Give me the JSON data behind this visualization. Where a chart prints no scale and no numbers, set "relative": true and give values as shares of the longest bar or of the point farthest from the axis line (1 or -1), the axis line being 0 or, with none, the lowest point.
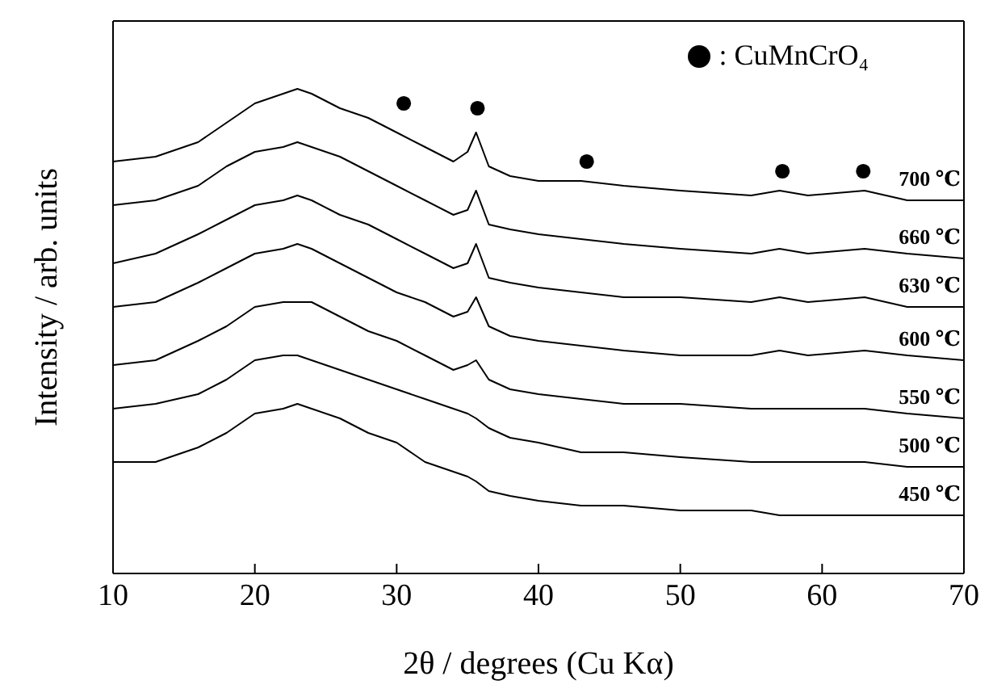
{
  "chart_data": {
    "type": "line",
    "relative": true,
    "xlabel": "2θ  / degrees  (Cu Kα)",
    "ylabel": "Intensity / arb. units",
    "x": [
      10,
      13,
      16,
      18,
      20,
      22,
      23,
      24,
      26,
      28,
      30,
      32,
      34,
      35,
      35.6,
      36.5,
      38,
      40,
      43,
      46,
      50,
      55,
      57,
      59,
      63,
      66,
      70
    ],
    "xlim": [
      10,
      70
    ],
    "xticks": [
      10,
      20,
      30,
      40,
      50,
      60,
      70
    ],
    "grid": false,
    "legend": "top right",
    "marker": "none",
    "line_style": "solid",
    "series": [
      {
        "name": "700 ℃",
        "color": "#000000",
        "values": [
          0.85,
          0.86,
          0.89,
          0.93,
          0.97,
          0.99,
          1.0,
          0.99,
          0.96,
          0.94,
          0.91,
          0.88,
          0.85,
          0.87,
          0.91,
          0.84,
          0.82,
          0.81,
          0.81,
          0.8,
          0.79,
          0.78,
          0.79,
          0.78,
          0.79,
          0.77,
          0.77
        ]
      },
      {
        "name": "660 ℃",
        "color": "#000000",
        "values": [
          0.76,
          0.77,
          0.8,
          0.84,
          0.87,
          0.88,
          0.89,
          0.88,
          0.86,
          0.83,
          0.8,
          0.77,
          0.74,
          0.75,
          0.79,
          0.72,
          0.71,
          0.7,
          0.69,
          0.68,
          0.67,
          0.66,
          0.67,
          0.66,
          0.67,
          0.66,
          0.65
        ]
      },
      {
        "name": "630 ℃",
        "color": "#000000",
        "values": [
          0.64,
          0.66,
          0.7,
          0.73,
          0.76,
          0.77,
          0.78,
          0.77,
          0.74,
          0.72,
          0.69,
          0.66,
          0.63,
          0.64,
          0.68,
          0.61,
          0.6,
          0.59,
          0.58,
          0.57,
          0.57,
          0.56,
          0.57,
          0.56,
          0.57,
          0.55,
          0.55
        ]
      },
      {
        "name": "600 ℃",
        "color": "#000000",
        "values": [
          0.55,
          0.56,
          0.6,
          0.63,
          0.66,
          0.67,
          0.68,
          0.67,
          0.64,
          0.61,
          0.58,
          0.56,
          0.53,
          0.54,
          0.57,
          0.51,
          0.49,
          0.48,
          0.47,
          0.46,
          0.45,
          0.45,
          0.46,
          0.45,
          0.46,
          0.45,
          0.44
        ]
      },
      {
        "name": "550 ℃",
        "color": "#000000",
        "values": [
          0.43,
          0.44,
          0.48,
          0.51,
          0.55,
          0.56,
          0.56,
          0.56,
          0.53,
          0.5,
          0.48,
          0.45,
          0.42,
          0.43,
          0.44,
          0.4,
          0.38,
          0.37,
          0.36,
          0.35,
          0.35,
          0.34,
          0.34,
          0.34,
          0.34,
          0.33,
          0.32
        ]
      },
      {
        "name": "500 ℃",
        "color": "#000000",
        "values": [
          0.34,
          0.35,
          0.37,
          0.4,
          0.44,
          0.45,
          0.45,
          0.44,
          0.42,
          0.4,
          0.38,
          0.36,
          0.34,
          0.33,
          0.32,
          0.3,
          0.28,
          0.27,
          0.25,
          0.25,
          0.24,
          0.23,
          0.23,
          0.23,
          0.23,
          0.22,
          0.22
        ]
      },
      {
        "name": "450 ℃",
        "color": "#000000",
        "values": [
          0.23,
          0.23,
          0.26,
          0.29,
          0.33,
          0.34,
          0.35,
          0.34,
          0.32,
          0.29,
          0.27,
          0.23,
          0.21,
          0.2,
          0.19,
          0.17,
          0.16,
          0.15,
          0.14,
          0.14,
          0.13,
          0.13,
          0.12,
          0.12,
          0.12,
          0.12,
          0.12
        ]
      },
      {
        "name": ": CuMnCrO₄",
        "type": "scatter",
        "marker": "circle",
        "color": "#000000",
        "x": [
          30.5,
          35.7,
          43.4,
          57.2,
          62.9
        ],
        "values": [
          0.97,
          0.96,
          0.85,
          0.83,
          0.83
        ]
      }
    ]
  }
}
